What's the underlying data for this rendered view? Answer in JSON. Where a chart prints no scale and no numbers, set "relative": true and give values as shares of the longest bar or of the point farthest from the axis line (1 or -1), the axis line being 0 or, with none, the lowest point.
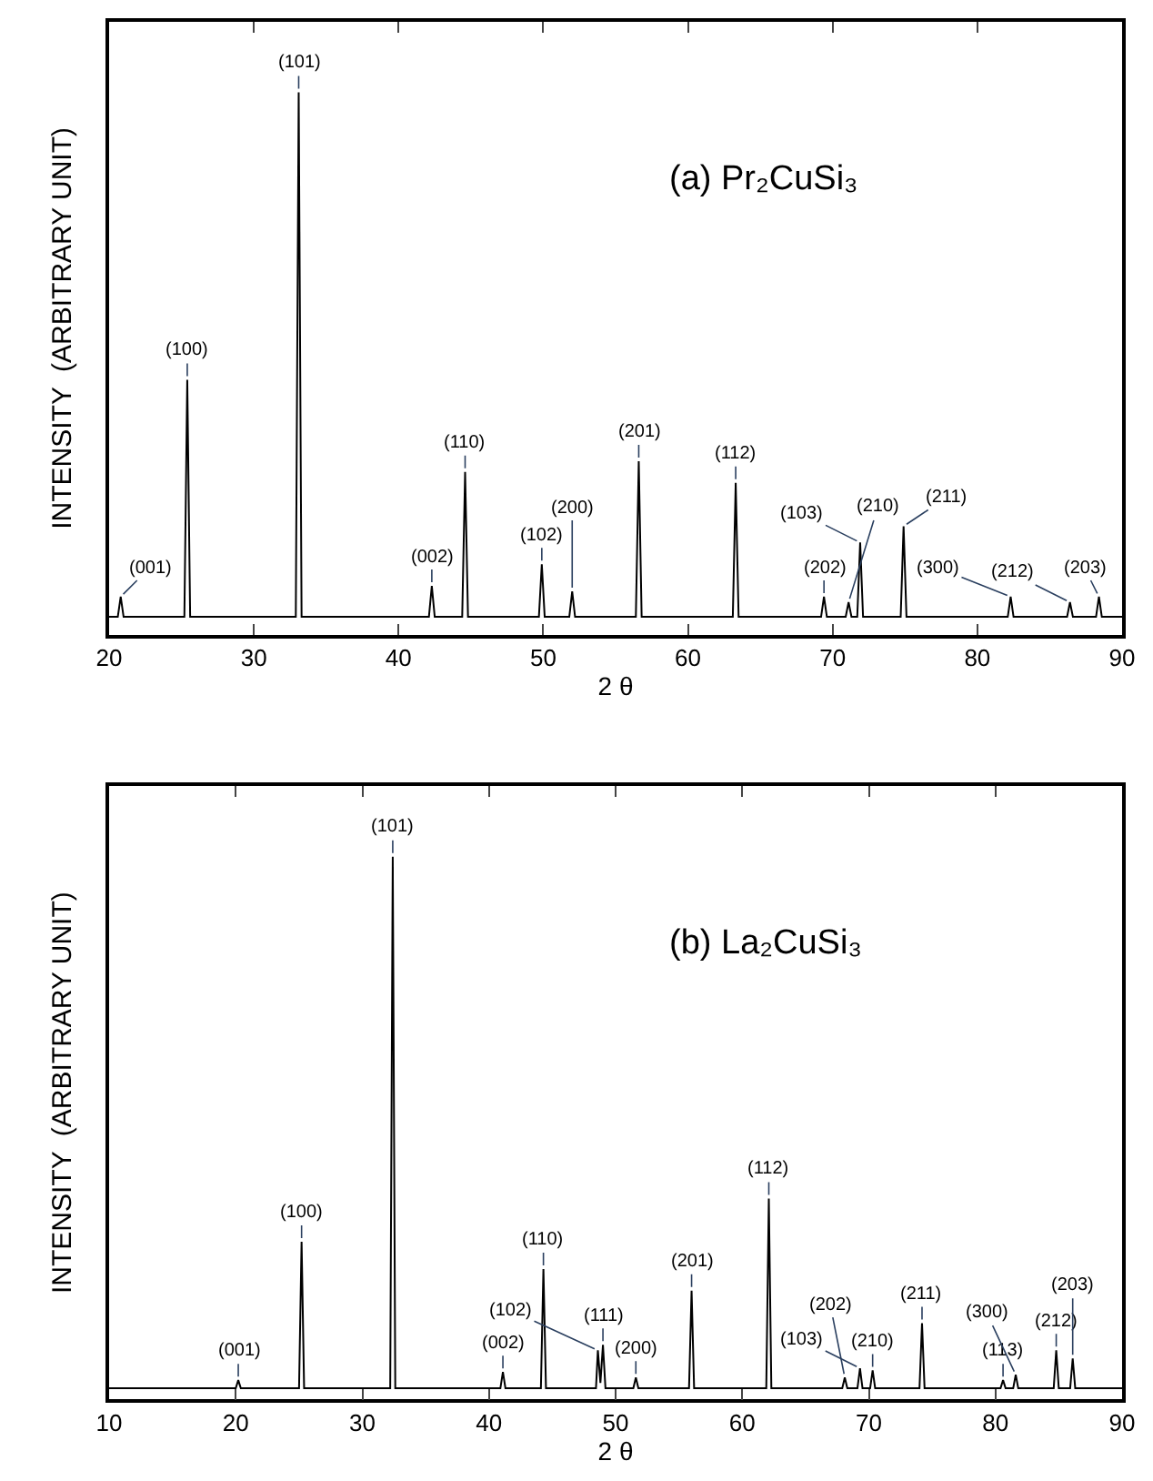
{
  "chart_data": [
    {
      "type": "line",
      "title": "(a) Pr₂CuSi₃",
      "xlabel": "2 θ",
      "ylabel": "INTENSITY  (ARBITRARY UNIT)",
      "relative": true,
      "xlim": [
        20,
        90
      ],
      "xticks": [
        20,
        30,
        40,
        50,
        60,
        70,
        80,
        90
      ],
      "series": [
        {
          "color": "#000000",
          "x": [
            20,
            20.6,
            20.8,
            21.0,
            25.2,
            25.4,
            25.6,
            32.9,
            33.1,
            33.3,
            42.1,
            42.3,
            42.5,
            44.4,
            44.6,
            44.8,
            49.7,
            49.9,
            50.1,
            51.8,
            52.0,
            52.2,
            56.4,
            56.6,
            56.8,
            63.1,
            63.3,
            63.5,
            69.2,
            69.4,
            69.6,
            70.9,
            71.1,
            71.3,
            71.7,
            71.9,
            72.1,
            74.7,
            74.9,
            75.1,
            82.1,
            82.3,
            82.5,
            86.2,
            86.4,
            86.6,
            88.2,
            88.4,
            88.6,
            90
          ],
          "values": [
            0.033,
            0.033,
            0.07,
            0.033,
            0.033,
            0.47,
            0.033,
            0.033,
            1,
            0.033,
            0.033,
            0.09,
            0.033,
            0.033,
            0.3,
            0.033,
            0.033,
            0.13,
            0.033,
            0.033,
            0.08,
            0.033,
            0.033,
            0.32,
            0.033,
            0.033,
            0.28,
            0.033,
            0.033,
            0.07,
            0.033,
            0.033,
            0.06,
            0.033,
            0.033,
            0.17,
            0.033,
            0.033,
            0.2,
            0.033,
            0.033,
            0.07,
            0.033,
            0.033,
            0.06,
            0.033,
            0.033,
            0.07,
            0.033,
            0.033
          ]
        }
      ],
      "annotations": [
        {
          "text": "(001)",
          "x": 20.8,
          "y": 0.07
        },
        {
          "text": "(100)",
          "x": 25.4,
          "y": 0.47
        },
        {
          "text": "(101)",
          "x": 33.1,
          "y": 1
        },
        {
          "text": "(002)",
          "x": 42.3,
          "y": 0.09
        },
        {
          "text": "(110)",
          "x": 44.6,
          "y": 0.3
        },
        {
          "text": "(102)",
          "x": 49.9,
          "y": 0.13
        },
        {
          "text": "(200)",
          "x": 52.0,
          "y": 0.08
        },
        {
          "text": "(201)",
          "x": 56.6,
          "y": 0.32
        },
        {
          "text": "(112)",
          "x": 63.3,
          "y": 0.28
        },
        {
          "text": "(202)",
          "x": 69.4,
          "y": 0.07
        },
        {
          "text": "(210)",
          "x": 71.1,
          "y": 0.06
        },
        {
          "text": "(103)",
          "x": 71.9,
          "y": 0.17
        },
        {
          "text": "(211)",
          "x": 74.9,
          "y": 0.2
        },
        {
          "text": "(300)",
          "x": 82.3,
          "y": 0.07
        },
        {
          "text": "(212)",
          "x": 86.4,
          "y": 0.06
        },
        {
          "text": "(203)",
          "x": 88.4,
          "y": 0.07
        }
      ]
    },
    {
      "type": "line",
      "title": "(b) La₂CuSi₃",
      "xlabel": "2 θ",
      "ylabel": "INTENSITY  (ARBITRARY UNIT)",
      "relative": true,
      "xlim": [
        10,
        90
      ],
      "xticks": [
        10,
        20,
        30,
        40,
        50,
        60,
        70,
        80,
        90
      ],
      "series": [
        {
          "color": "#000000",
          "x": [
            10,
            20.0,
            20.2,
            20.4,
            25.0,
            25.2,
            25.4,
            32.2,
            32.4,
            32.6,
            40.9,
            41.1,
            41.3,
            44.1,
            44.3,
            44.5,
            48.45,
            48.6,
            48.8,
            49.0,
            49.2,
            51.4,
            51.6,
            51.8,
            55.8,
            56.0,
            56.2,
            61.9,
            62.1,
            62.3,
            67.9,
            68.1,
            68.3,
            69.1,
            69.3,
            69.5,
            70.1,
            70.3,
            70.5,
            74.0,
            74.2,
            74.4,
            80.4,
            80.6,
            80.8,
            81.4,
            81.6,
            81.8,
            84.6,
            84.8,
            85.0,
            85.9,
            86.1,
            86.3,
            90
          ],
          "values": [
            0.02,
            0.02,
            0.035,
            0.02,
            0.02,
            0.29,
            0.02,
            0.02,
            1,
            0.02,
            0.02,
            0.05,
            0.02,
            0.02,
            0.24,
            0.02,
            0.02,
            0.09,
            0.03,
            0.1,
            0.02,
            0.02,
            0.04,
            0.02,
            0.02,
            0.2,
            0.02,
            0.02,
            0.37,
            0.02,
            0.02,
            0.04,
            0.02,
            0.02,
            0.057,
            0.02,
            0.02,
            0.053,
            0.02,
            0.02,
            0.14,
            0.02,
            0.02,
            0.035,
            0.02,
            0.02,
            0.045,
            0.02,
            0.02,
            0.09,
            0.02,
            0.02,
            0.075,
            0.02,
            0.02
          ]
        }
      ],
      "annotations": [
        {
          "text": "(001)",
          "x": 20.2,
          "y": 0.035
        },
        {
          "text": "(100)",
          "x": 25.2,
          "y": 0.29
        },
        {
          "text": "(101)",
          "x": 32.4,
          "y": 1
        },
        {
          "text": "(002)",
          "x": 41.1,
          "y": 0.05
        },
        {
          "text": "(110)",
          "x": 44.3,
          "y": 0.24
        },
        {
          "text": "(102)",
          "x": 48.6,
          "y": 0.09
        },
        {
          "text": "(111)",
          "x": 49.0,
          "y": 0.1
        },
        {
          "text": "(200)",
          "x": 51.6,
          "y": 0.04
        },
        {
          "text": "(201)",
          "x": 56.0,
          "y": 0.2
        },
        {
          "text": "(112)",
          "x": 62.1,
          "y": 0.37
        },
        {
          "text": "(202)",
          "x": 68.1,
          "y": 0.04
        },
        {
          "text": "(103)",
          "x": 69.3,
          "y": 0.057
        },
        {
          "text": "(210)",
          "x": 70.3,
          "y": 0.053
        },
        {
          "text": "(211)",
          "x": 74.2,
          "y": 0.14
        },
        {
          "text": "(113)",
          "x": 80.6,
          "y": 0.035
        },
        {
          "text": "(300)",
          "x": 81.6,
          "y": 0.045
        },
        {
          "text": "(212)",
          "x": 84.8,
          "y": 0.09
        },
        {
          "text": "(203)",
          "x": 86.1,
          "y": 0.075
        }
      ]
    }
  ]
}
